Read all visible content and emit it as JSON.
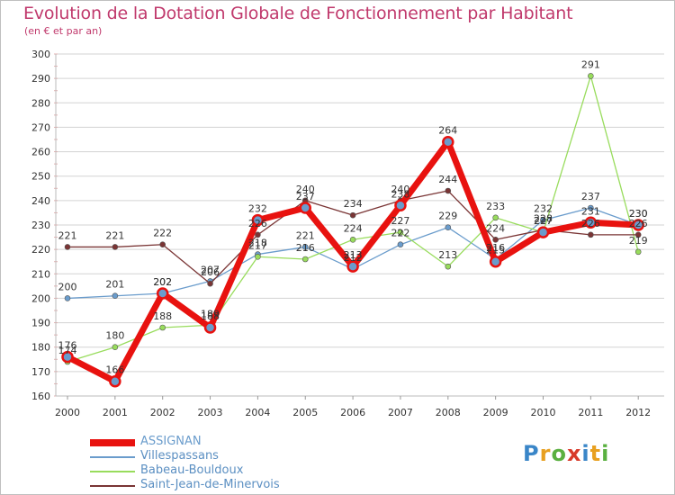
{
  "header": {
    "title": "Evolution de la Dotation Globale de Fonctionnement par Habitant",
    "subtitle": "(en € et par an)"
  },
  "logo": {
    "text": "Proxiti"
  },
  "colors": {
    "title": "#c0396c",
    "assignan": "#e8120f",
    "villespassans": "#6a9ccc",
    "babeau": "#98dc5c",
    "saint_jean": "#7a3535",
    "grid": "#d3d3d3",
    "axis_red": "#e3b0b0"
  },
  "chart_data": {
    "type": "line",
    "title": "Evolution de la Dotation Globale de Fonctionnement par Habitant",
    "subtitle": "(en € et par an)",
    "xlabel": "",
    "ylabel": "",
    "x": [
      "2000",
      "2001",
      "2002",
      "2003",
      "2004",
      "2005",
      "2006",
      "2007",
      "2008",
      "2009",
      "2010",
      "2011",
      "2012"
    ],
    "ylim": [
      160,
      300
    ],
    "yticks": [
      160,
      170,
      180,
      190,
      200,
      210,
      220,
      230,
      240,
      250,
      260,
      270,
      280,
      290,
      300
    ],
    "grid": "horizontal",
    "legend_position": "bottom-left",
    "series": [
      {
        "name": "ASSIGNAN",
        "key": "assignan",
        "values": [
          176,
          166,
          202,
          188,
          232,
          237,
          213,
          238,
          264,
          215,
          227,
          231,
          230
        ]
      },
      {
        "name": "Villespassans",
        "key": "villespassans",
        "values": [
          200,
          201,
          202,
          207,
          218,
          221,
          212,
          222,
          229,
          216,
          232,
          237,
          230
        ]
      },
      {
        "name": "Babeau-Bouldoux",
        "key": "babeau",
        "values": [
          174,
          180,
          188,
          189,
          217,
          216,
          224,
          227,
          213,
          233,
          227,
          291,
          219
        ]
      },
      {
        "name": "Saint-Jean-de-Minervois",
        "key": "saint_jean",
        "values": [
          221,
          221,
          222,
          206,
          226,
          240,
          234,
          240,
          244,
          224,
          228,
          226,
          226
        ]
      }
    ]
  }
}
